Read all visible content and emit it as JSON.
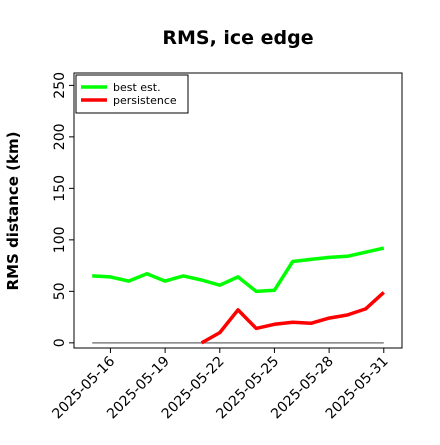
{
  "chart_data": {
    "type": "line",
    "title": "RMS, ice edge",
    "xlabel": "",
    "ylabel": "RMS distance (km)",
    "xlim": [
      "2025-05-14",
      "2025-06-01"
    ],
    "ylim": [
      -5,
      262
    ],
    "yticks": [
      0,
      50,
      100,
      150,
      200,
      250
    ],
    "xticks": [
      "2025-05-16",
      "2025-05-19",
      "2025-05-22",
      "2025-05-25",
      "2025-05-28",
      "2025-05-31"
    ],
    "grid": false,
    "legend": "top-left",
    "series": [
      {
        "name": "best est.",
        "color": "#00ff00",
        "x": [
          "2025-05-15",
          "2025-05-16",
          "2025-05-17",
          "2025-05-18",
          "2025-05-19",
          "2025-05-20",
          "2025-05-21",
          "2025-05-22",
          "2025-05-23",
          "2025-05-24",
          "2025-05-25",
          "2025-05-26",
          "2025-05-27",
          "2025-05-28",
          "2025-05-29",
          "2025-05-30",
          "2025-05-31"
        ],
        "values": [
          65,
          64,
          60,
          67,
          60,
          65,
          61,
          56,
          64,
          50,
          51,
          79,
          81,
          83,
          84,
          88,
          92
        ]
      },
      {
        "name": "persistence",
        "color": "#ff0000",
        "x": [
          "2025-05-21",
          "2025-05-22",
          "2025-05-23",
          "2025-05-24",
          "2025-05-25",
          "2025-05-26",
          "2025-05-27",
          "2025-05-28",
          "2025-05-29",
          "2025-05-30",
          "2025-05-31"
        ],
        "values": [
          0,
          10,
          32,
          14,
          18,
          20,
          19,
          24,
          27,
          33,
          49
        ]
      }
    ],
    "reference_line": {
      "color": "#808080",
      "x": [
        "2025-05-15",
        "2025-05-31"
      ],
      "values": [
        0,
        0
      ]
    }
  }
}
